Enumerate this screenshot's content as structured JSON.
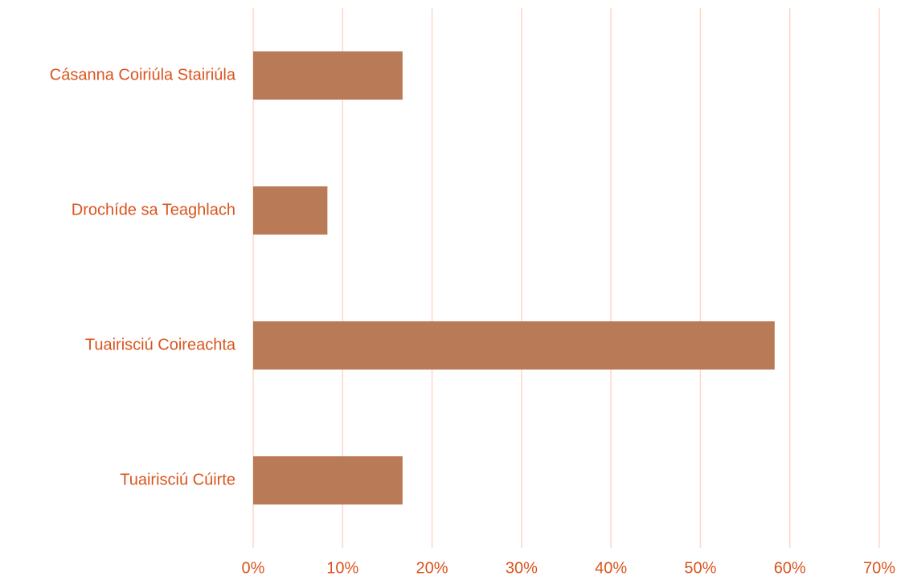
{
  "chart_data": {
    "type": "bar",
    "orientation": "horizontal",
    "categories": [
      "Cásanna Coiriúla Stairiúla",
      "Drochíde sa Teaghlach",
      "Tuairisciú Coireachta",
      "Tuairisciú Cúirte"
    ],
    "values": [
      16.7,
      8.3,
      58.3,
      16.7
    ],
    "color": "#b97a57",
    "xlim": [
      0,
      70
    ],
    "xticks": [
      {
        "value": 0,
        "label": "0%"
      },
      {
        "value": 10,
        "label": "10%"
      },
      {
        "value": 20,
        "label": "20%"
      },
      {
        "value": 30,
        "label": "30%"
      },
      {
        "value": 40,
        "label": "40%"
      },
      {
        "value": 50,
        "label": "50%"
      },
      {
        "value": 60,
        "label": "60%"
      },
      {
        "value": 70,
        "label": "70%"
      }
    ],
    "grid": true
  }
}
